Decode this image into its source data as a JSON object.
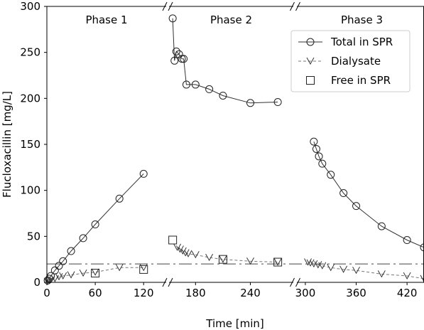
{
  "chart_data": {
    "type": "line",
    "xlabel": "Time [min]",
    "ylabel": "Flucloxacillin [mg/L]",
    "ylim": [
      0,
      300
    ],
    "yticks": [
      0,
      50,
      100,
      150,
      200,
      250,
      300
    ],
    "xticks": [
      0,
      60,
      120,
      180,
      240,
      300,
      360,
      420
    ],
    "panels": [
      {
        "label": "Phase 1",
        "xlim": [
          0,
          148
        ]
      },
      {
        "label": "Phase 2",
        "xlim": [
          151,
          287
        ]
      },
      {
        "label": "Phase 3",
        "xlim": [
          290,
          440
        ]
      }
    ],
    "series": [
      {
        "name": "Total in SPR",
        "marker": "circle",
        "line": "solid",
        "points": [
          [
            1,
            2
          ],
          [
            3,
            4
          ],
          [
            5,
            7
          ],
          [
            10,
            13
          ],
          [
            15,
            18
          ],
          [
            20,
            23
          ],
          [
            30,
            34
          ],
          [
            45,
            48
          ],
          [
            60,
            63
          ],
          [
            90,
            91
          ],
          [
            120,
            118
          ],
          [
            155,
            287
          ],
          [
            157,
            241
          ],
          [
            159,
            251
          ],
          [
            162,
            248
          ],
          [
            165,
            243
          ],
          [
            167,
            243
          ],
          [
            170,
            215
          ],
          [
            180,
            215
          ],
          [
            195,
            210
          ],
          [
            210,
            203
          ],
          [
            240,
            195
          ],
          [
            270,
            196
          ],
          [
            310,
            153
          ],
          [
            313,
            145
          ],
          [
            316,
            137
          ],
          [
            320,
            129
          ],
          [
            330,
            117
          ],
          [
            345,
            97
          ],
          [
            360,
            83
          ],
          [
            390,
            61
          ],
          [
            420,
            46
          ],
          [
            440,
            38
          ]
        ]
      },
      {
        "name": "Dialysate",
        "marker": "v",
        "line": "dashed",
        "points": [
          [
            1,
            1
          ],
          [
            3,
            2
          ],
          [
            5,
            3
          ],
          [
            10,
            4
          ],
          [
            15,
            6
          ],
          [
            20,
            7
          ],
          [
            30,
            8
          ],
          [
            45,
            10
          ],
          [
            60,
            11
          ],
          [
            90,
            16
          ],
          [
            120,
            16
          ],
          [
            160,
            38
          ],
          [
            163,
            36
          ],
          [
            166,
            34
          ],
          [
            169,
            32
          ],
          [
            172,
            31
          ],
          [
            180,
            30
          ],
          [
            195,
            27
          ],
          [
            210,
            25
          ],
          [
            240,
            23
          ],
          [
            270,
            22
          ],
          [
            303,
            22
          ],
          [
            306,
            21
          ],
          [
            310,
            20
          ],
          [
            315,
            19
          ],
          [
            320,
            18
          ],
          [
            330,
            16
          ],
          [
            345,
            14
          ],
          [
            360,
            13
          ],
          [
            390,
            9
          ],
          [
            420,
            7
          ],
          [
            440,
            4
          ]
        ]
      },
      {
        "name": "Free in SPR",
        "marker": "square",
        "line": "none",
        "points": [
          [
            60,
            10
          ],
          [
            120,
            14
          ],
          [
            155,
            46
          ],
          [
            210,
            25
          ],
          [
            270,
            22
          ]
        ]
      }
    ],
    "reference_line": {
      "style": "dash-dot",
      "y": 20
    },
    "legend_position": "top-right"
  }
}
